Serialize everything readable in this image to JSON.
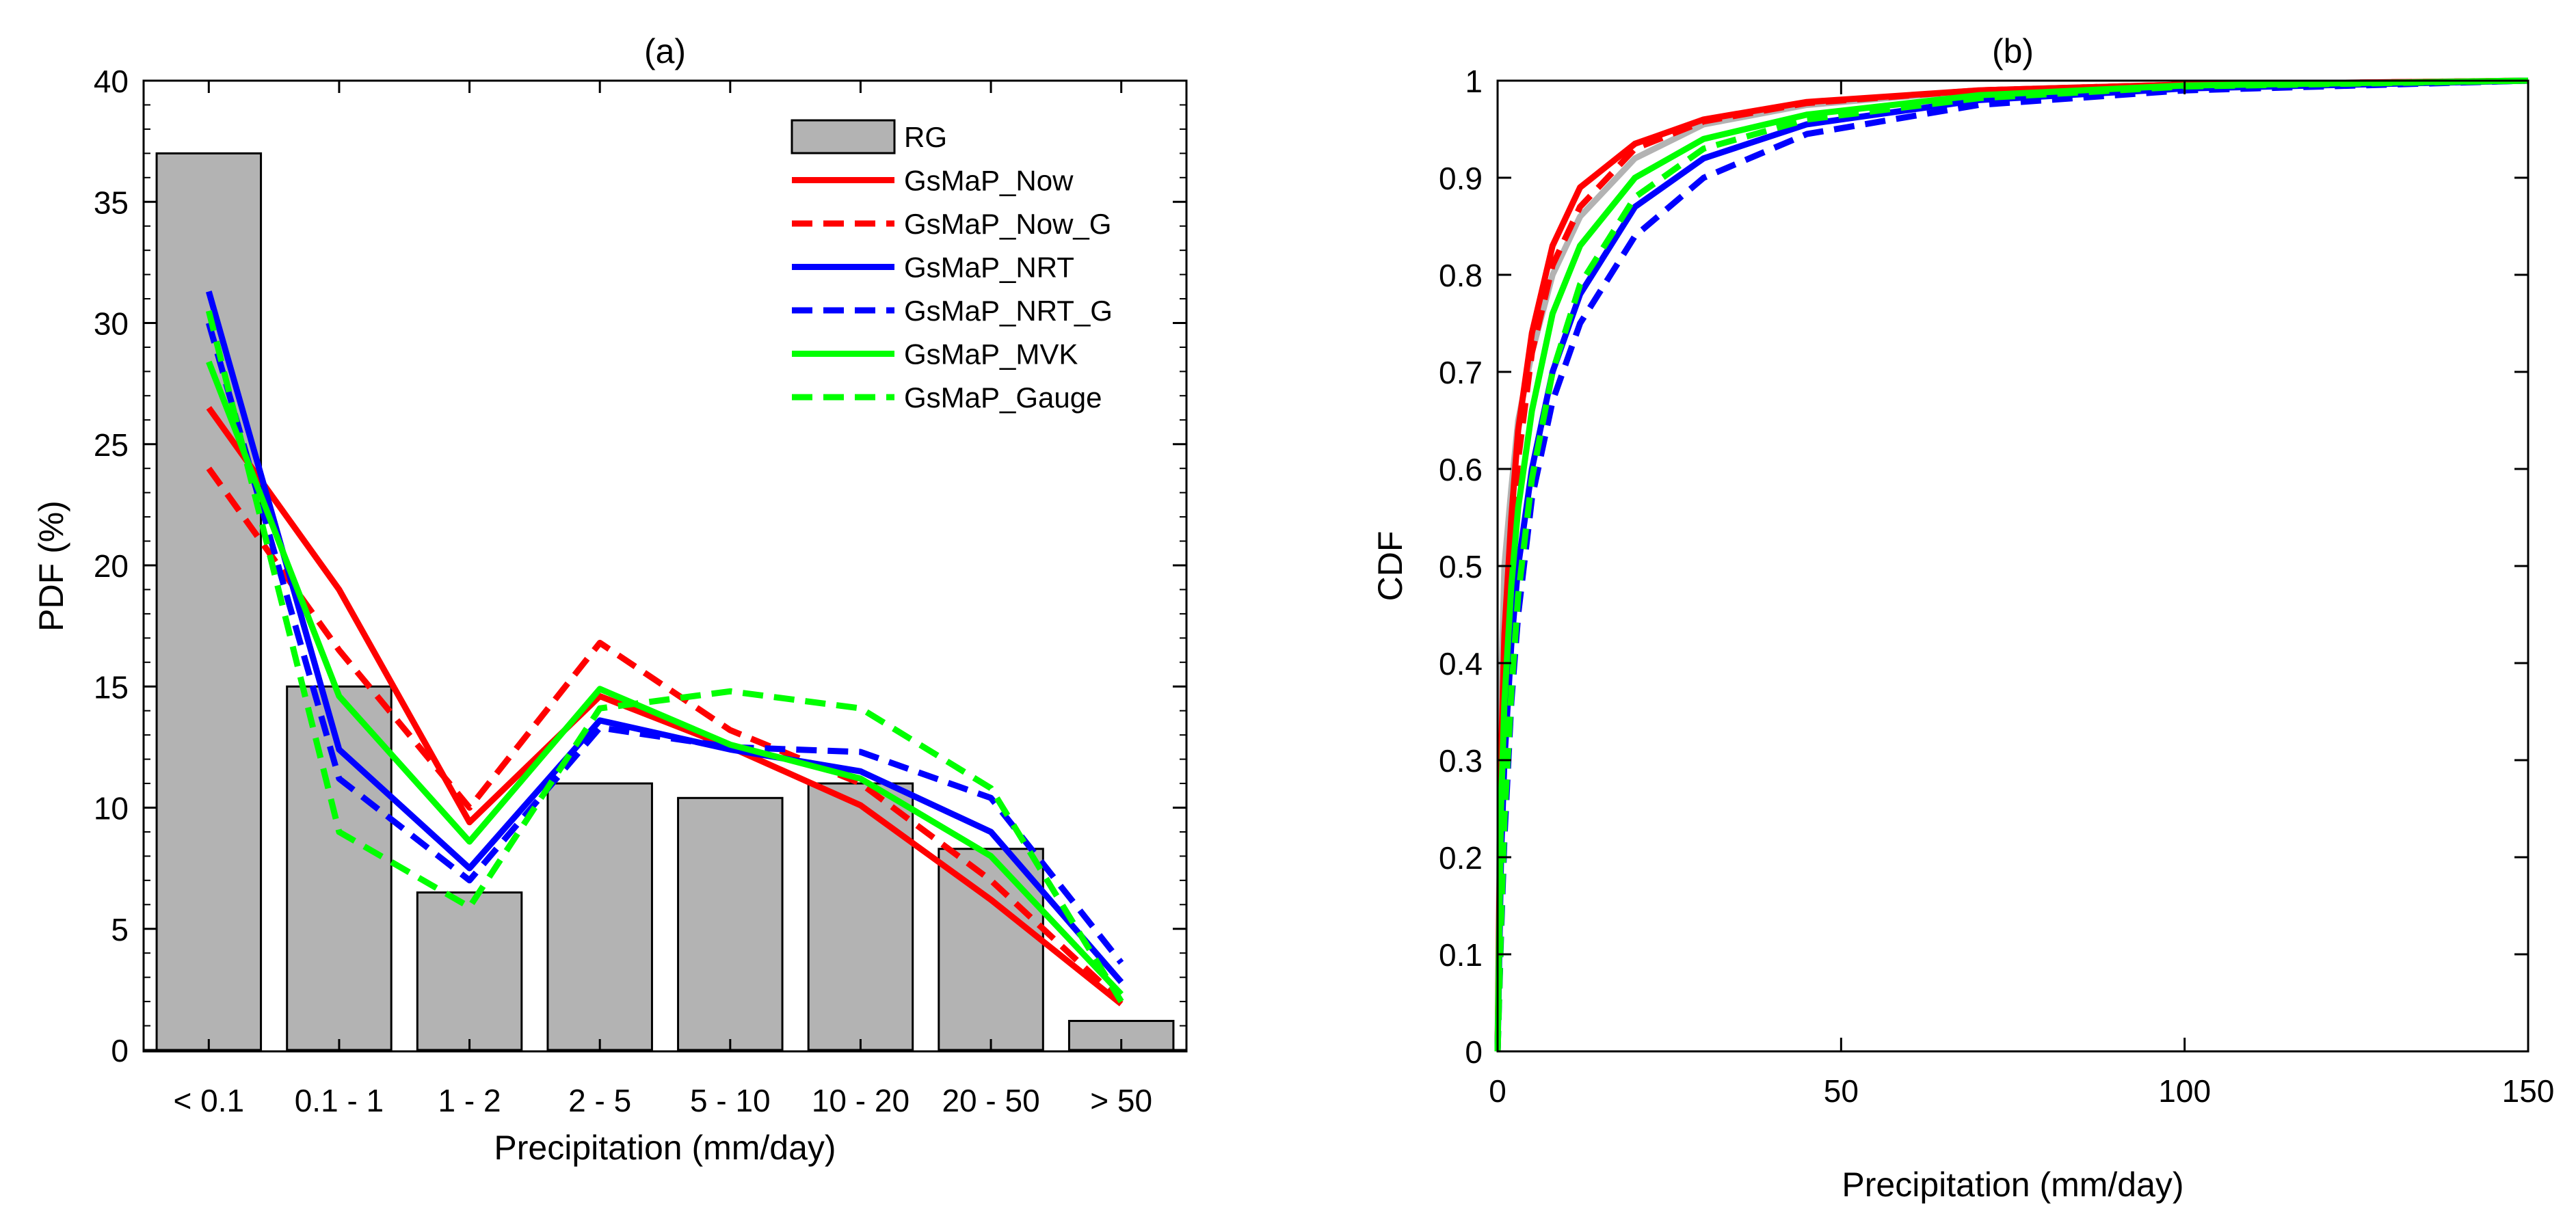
{
  "chart_data": [
    {
      "panel": "(a)",
      "type": "bar",
      "title": "(a)",
      "xlabel": "Precipitation (mm/day)",
      "ylabel": "PDF (%)",
      "ylim": [
        0,
        40
      ],
      "yticks": [
        "0",
        "5",
        "10",
        "15",
        "20",
        "25",
        "30",
        "35",
        "40"
      ],
      "categories": [
        "< 0.1",
        "0.1 - 1",
        "1 - 2",
        "2 - 5",
        "5 - 10",
        "10 - 20",
        "20 - 50",
        "> 50"
      ],
      "bars": {
        "name": "RG",
        "color": "#b3b3b3",
        "values": [
          37.0,
          15.0,
          6.5,
          11.0,
          10.4,
          11.0,
          8.3,
          1.2
        ]
      },
      "series": [
        {
          "name": "GsMaP_Now",
          "color": "#ff0000",
          "dash": "solid",
          "values": [
            26.5,
            19.0,
            9.4,
            14.6,
            12.5,
            10.1,
            6.2,
            1.9
          ]
        },
        {
          "name": "GsMaP_Now_G",
          "color": "#ff0000",
          "dash": "dashed",
          "values": [
            24.0,
            16.5,
            10.0,
            16.8,
            13.2,
            11.0,
            7.0,
            2.0
          ]
        },
        {
          "name": "GsMaP_NRT",
          "color": "#0000ff",
          "dash": "solid",
          "values": [
            31.3,
            12.4,
            7.5,
            13.6,
            12.4,
            11.5,
            9.0,
            2.8
          ]
        },
        {
          "name": "GsMaP_NRT_G",
          "color": "#0000ff",
          "dash": "dashed",
          "values": [
            30.0,
            11.2,
            7.0,
            13.3,
            12.5,
            12.3,
            10.4,
            3.6
          ]
        },
        {
          "name": "GsMaP_MVK",
          "color": "#00ff00",
          "dash": "solid",
          "values": [
            28.4,
            14.6,
            8.6,
            14.9,
            12.6,
            11.2,
            8.0,
            2.3
          ]
        },
        {
          "name": "GsMaP_Gauge",
          "color": "#00ff00",
          "dash": "dashed",
          "values": [
            30.5,
            9.0,
            5.9,
            14.1,
            14.8,
            14.1,
            10.8,
            2.0
          ]
        }
      ],
      "legend": "top-right"
    },
    {
      "panel": "(b)",
      "type": "line",
      "title": "(b)",
      "xlabel": "Precipitation (mm/day)",
      "ylabel": "CDF",
      "xlim": [
        0,
        150
      ],
      "ylim": [
        0,
        1
      ],
      "xticks": [
        "0",
        "50",
        "100",
        "150"
      ],
      "yticks": [
        "0",
        "0.1",
        "0.2",
        "0.3",
        "0.4",
        "0.5",
        "0.6",
        "0.7",
        "0.8",
        "0.9",
        "1"
      ],
      "series": [
        {
          "name": "RG",
          "color": "#b3b3b3",
          "dash": "solid",
          "x": [
            0,
            0.5,
            1,
            2,
            3,
            5,
            8,
            12,
            20,
            30,
            45,
            70,
            100,
            150
          ],
          "y": [
            0,
            0.37,
            0.5,
            0.58,
            0.65,
            0.72,
            0.8,
            0.86,
            0.92,
            0.955,
            0.975,
            0.99,
            0.996,
            1
          ]
        },
        {
          "name": "GsMaP_Now",
          "color": "#ff0000",
          "dash": "solid",
          "x": [
            0,
            0.5,
            1,
            2,
            3,
            5,
            8,
            12,
            20,
            30,
            45,
            70,
            100,
            150
          ],
          "y": [
            0,
            0.3,
            0.43,
            0.55,
            0.64,
            0.74,
            0.83,
            0.89,
            0.935,
            0.96,
            0.978,
            0.99,
            0.996,
            1
          ]
        },
        {
          "name": "GsMaP_Now_G",
          "color": "#ff0000",
          "dash": "dashed",
          "x": [
            0,
            0.5,
            1,
            2,
            3,
            5,
            8,
            12,
            20,
            30,
            45,
            70,
            100,
            150
          ],
          "y": [
            0,
            0.24,
            0.38,
            0.52,
            0.61,
            0.72,
            0.81,
            0.87,
            0.93,
            0.958,
            0.977,
            0.99,
            0.996,
            1
          ]
        },
        {
          "name": "GsMaP_NRT",
          "color": "#0000ff",
          "dash": "solid",
          "x": [
            0,
            0.5,
            1,
            2,
            3,
            5,
            8,
            12,
            20,
            30,
            45,
            70,
            100,
            150
          ],
          "y": [
            0,
            0.2,
            0.3,
            0.42,
            0.5,
            0.6,
            0.7,
            0.78,
            0.87,
            0.92,
            0.955,
            0.98,
            0.992,
            1
          ]
        },
        {
          "name": "GsMaP_NRT_G",
          "color": "#0000ff",
          "dash": "dashed",
          "x": [
            0,
            0.5,
            1,
            2,
            3,
            5,
            8,
            12,
            20,
            30,
            45,
            70,
            100,
            150
          ],
          "y": [
            0,
            0.12,
            0.22,
            0.36,
            0.45,
            0.57,
            0.67,
            0.75,
            0.84,
            0.9,
            0.945,
            0.975,
            0.99,
            1
          ]
        },
        {
          "name": "GsMaP_MVK",
          "color": "#00ff00",
          "dash": "solid",
          "x": [
            0,
            0.5,
            1,
            2,
            3,
            5,
            8,
            12,
            20,
            30,
            45,
            70,
            100,
            150
          ],
          "y": [
            0,
            0.25,
            0.36,
            0.48,
            0.56,
            0.66,
            0.76,
            0.83,
            0.9,
            0.94,
            0.965,
            0.985,
            0.995,
            1
          ]
        },
        {
          "name": "GsMaP_Gauge",
          "color": "#00ff00",
          "dash": "dashed",
          "x": [
            0,
            0.5,
            1,
            2,
            3,
            5,
            8,
            12,
            20,
            30,
            45,
            70,
            100,
            150
          ],
          "y": [
            0,
            0.13,
            0.24,
            0.37,
            0.47,
            0.59,
            0.7,
            0.79,
            0.88,
            0.93,
            0.96,
            0.982,
            0.994,
            1
          ]
        }
      ]
    }
  ]
}
